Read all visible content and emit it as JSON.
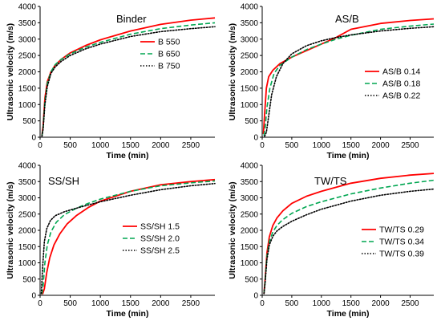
{
  "figure": {
    "panels": [
      {
        "key": "binder",
        "title": "Binder",
        "xlabel": "Time (min)",
        "ylabel": "Ultrasonic velocity (m/s)"
      },
      {
        "key": "asb",
        "title": "AS/B",
        "xlabel": "Time (min)",
        "ylabel": "Ultrasonic velocity (m/s)"
      },
      {
        "key": "sssh",
        "title": "SS/SH",
        "xlabel": "Time (min)",
        "ylabel": "Ultrasonic velocity (m/s)"
      },
      {
        "key": "twts",
        "title": "TW/TS",
        "xlabel": "Time (min)",
        "ylabel": "Ultrasonic velocity (m/s)"
      }
    ]
  },
  "colors": {
    "red": "#ff0000",
    "green": "#00a651",
    "black": "#000000"
  },
  "chart_data": [
    {
      "type": "line",
      "title": "Binder",
      "xlabel": "Time (min)",
      "ylabel": "Ultrasonic velocity (m/s)",
      "xlim": [
        0,
        2900
      ],
      "ylim": [
        0,
        4000
      ],
      "xticks": [
        "0",
        "500",
        "1000",
        "1500",
        "2000",
        "2500"
      ],
      "yticks": [
        "0",
        "500",
        "1000",
        "1500",
        "2000",
        "2500",
        "3000",
        "3500",
        "4000"
      ],
      "grid": false,
      "legend": "middle-right",
      "series": [
        {
          "name": "B 550",
          "style": "solid",
          "color": "red",
          "x": [
            30,
            50,
            80,
            120,
            180,
            250,
            350,
            500,
            750,
            1000,
            1500,
            2000,
            2500,
            2900
          ],
          "y": [
            50,
            350,
            1200,
            1700,
            2000,
            2200,
            2380,
            2580,
            2800,
            2980,
            3250,
            3450,
            3580,
            3650
          ]
        },
        {
          "name": "B 650",
          "style": "dashed",
          "color": "green",
          "x": [
            30,
            50,
            80,
            120,
            180,
            250,
            350,
            500,
            750,
            1000,
            1500,
            2000,
            2500,
            2900
          ],
          "y": [
            40,
            300,
            1100,
            1650,
            2000,
            2220,
            2380,
            2550,
            2750,
            2900,
            3150,
            3320,
            3430,
            3500
          ]
        },
        {
          "name": "B 750",
          "style": "dotted",
          "color": "black",
          "x": [
            30,
            50,
            80,
            120,
            180,
            250,
            350,
            500,
            750,
            1000,
            1500,
            2000,
            2500,
            2900
          ],
          "y": [
            30,
            250,
            1000,
            1550,
            1950,
            2150,
            2320,
            2500,
            2700,
            2850,
            3080,
            3230,
            3320,
            3380
          ]
        }
      ]
    },
    {
      "type": "line",
      "title": "AS/B",
      "xlabel": "Time (min)",
      "ylabel": "Ultrasonic velocity (m/s)",
      "xlim": [
        0,
        2900
      ],
      "ylim": [
        0,
        4000
      ],
      "xticks": [
        "0",
        "500",
        "1000",
        "1500",
        "2000",
        "2500"
      ],
      "yticks": [
        "0",
        "500",
        "1000",
        "1500",
        "2000",
        "2500",
        "3000",
        "3500",
        "4000"
      ],
      "grid": false,
      "legend": "bottom-right",
      "series": [
        {
          "name": "AS/B 0.14",
          "style": "solid",
          "color": "red",
          "x": [
            20,
            40,
            70,
            110,
            180,
            300,
            500,
            750,
            1000,
            1250,
            1500,
            2000,
            2500,
            2900
          ],
          "y": [
            100,
            700,
            1500,
            1850,
            2050,
            2250,
            2450,
            2650,
            2850,
            3050,
            3300,
            3480,
            3570,
            3620
          ]
        },
        {
          "name": "AS/B 0.18",
          "style": "dashed",
          "color": "green",
          "x": [
            30,
            50,
            80,
            130,
            200,
            300,
            500,
            750,
            1000,
            1250,
            1500,
            2000,
            2500,
            2900
          ],
          "y": [
            50,
            300,
            900,
            1500,
            1950,
            2200,
            2450,
            2680,
            2850,
            3000,
            3120,
            3300,
            3400,
            3460
          ]
        },
        {
          "name": "AS/B 0.22",
          "style": "dotted",
          "color": "black",
          "x": [
            40,
            70,
            110,
            160,
            240,
            350,
            500,
            750,
            1000,
            1250,
            1500,
            2000,
            2500,
            2900
          ],
          "y": [
            30,
            150,
            650,
            1300,
            1850,
            2250,
            2550,
            2800,
            2950,
            3050,
            3130,
            3250,
            3330,
            3380
          ]
        }
      ]
    },
    {
      "type": "line",
      "title": "SS/SH",
      "xlabel": "Time (min)",
      "ylabel": "Ultrasonic velocity (m/s)",
      "xlim": [
        0,
        2900
      ],
      "ylim": [
        0,
        4000
      ],
      "xticks": [
        "0",
        "500",
        "1000",
        "1500",
        "2000",
        "2500"
      ],
      "yticks": [
        "0",
        "500",
        "1000",
        "1500",
        "2000",
        "2500",
        "3000",
        "3500",
        "4000"
      ],
      "grid": false,
      "legend": "middle-right",
      "series": [
        {
          "name": "SS/SH 1.5",
          "style": "solid",
          "color": "red",
          "x": [
            40,
            70,
            110,
            160,
            230,
            330,
            450,
            600,
            800,
            1000,
            1500,
            2000,
            2500,
            2900
          ],
          "y": [
            30,
            200,
            700,
            1150,
            1550,
            1900,
            2200,
            2450,
            2700,
            2900,
            3200,
            3400,
            3500,
            3560
          ]
        },
        {
          "name": "SS/SH 2.0",
          "style": "dashed",
          "color": "green",
          "x": [
            30,
            50,
            80,
            120,
            180,
            270,
            400,
            600,
            800,
            1000,
            1500,
            2000,
            2500,
            2900
          ],
          "y": [
            40,
            300,
            1000,
            1550,
            1950,
            2250,
            2480,
            2680,
            2830,
            2960,
            3200,
            3370,
            3460,
            3520
          ]
        },
        {
          "name": "SS/SH 2.5",
          "style": "dotted",
          "color": "black",
          "x": [
            20,
            40,
            70,
            110,
            170,
            250,
            400,
            600,
            800,
            1000,
            1500,
            2000,
            2500,
            2900
          ],
          "y": [
            50,
            800,
            1650,
            2050,
            2300,
            2450,
            2570,
            2680,
            2780,
            2880,
            3080,
            3250,
            3370,
            3440
          ]
        }
      ]
    },
    {
      "type": "line",
      "title": "TW/TS",
      "xlabel": "Time (min)",
      "ylabel": "Ultrasonic velocity (m/s)",
      "xlim": [
        0,
        2900
      ],
      "ylim": [
        0,
        4000
      ],
      "xticks": [
        "0",
        "500",
        "1000",
        "1500",
        "2000",
        "2500"
      ],
      "yticks": [
        "0",
        "500",
        "1000",
        "1500",
        "2000",
        "2500",
        "3000",
        "3500",
        "4000"
      ],
      "grid": false,
      "legend": "bottom-right",
      "series": [
        {
          "name": "TW/TS 0.29",
          "style": "solid",
          "color": "red",
          "x": [
            30,
            50,
            80,
            120,
            180,
            250,
            350,
            500,
            750,
            1000,
            1500,
            2000,
            2500,
            2900
          ],
          "y": [
            50,
            500,
            1300,
            1800,
            2150,
            2380,
            2600,
            2830,
            3050,
            3200,
            3450,
            3600,
            3700,
            3750
          ]
        },
        {
          "name": "TW/TS 0.34",
          "style": "dashed",
          "color": "green",
          "x": [
            30,
            50,
            80,
            120,
            180,
            250,
            350,
            500,
            750,
            1000,
            1500,
            2000,
            2500,
            2900
          ],
          "y": [
            50,
            450,
            1200,
            1650,
            1950,
            2150,
            2330,
            2520,
            2730,
            2880,
            3120,
            3300,
            3450,
            3540
          ]
        },
        {
          "name": "TW/TS 0.39",
          "style": "dotted",
          "color": "black",
          "x": [
            30,
            50,
            80,
            120,
            180,
            250,
            350,
            500,
            750,
            1000,
            1500,
            2000,
            2500,
            2900
          ],
          "y": [
            50,
            400,
            1100,
            1550,
            1820,
            1980,
            2120,
            2280,
            2480,
            2650,
            2900,
            3080,
            3200,
            3270
          ]
        }
      ]
    }
  ]
}
